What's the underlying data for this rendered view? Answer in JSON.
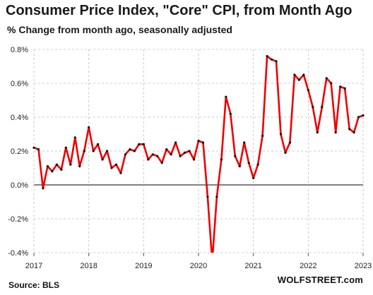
{
  "title": "Consumer Price Index, \"Core\" CPI, from Month Ago",
  "subtitle": "% Change from month ago, seasonally adjusted",
  "source": "Source: BLS",
  "watermark": "WOLFSTREET.com",
  "colors": {
    "line": "#ee0000",
    "marker": "#111111",
    "grid": "#bdbdbd",
    "zero_line": "#000000"
  },
  "chart_data": {
    "type": "line",
    "title": "Consumer Price Index, \"Core\" CPI, from Month Ago",
    "subtitle": "% Change from month ago, seasonally adjusted",
    "xlabel": "",
    "ylabel": "",
    "ylim": [
      -0.4,
      0.8
    ],
    "xlim": [
      "2017-01",
      "2023-01"
    ],
    "grid": true,
    "y_ticks": [
      "0.8%",
      "0.6%",
      "0.4%",
      "0.2%",
      "0.0%",
      "-0.2%",
      "-0.4%"
    ],
    "y_tick_values": [
      0.8,
      0.6,
      0.4,
      0.2,
      0.0,
      -0.2,
      -0.4
    ],
    "x_ticks": [
      "2017",
      "2018",
      "2019",
      "2020",
      "2021",
      "2022",
      "2023"
    ],
    "series": [
      {
        "x": [
          "2017-01",
          "2017-02",
          "2017-03",
          "2017-04",
          "2017-05",
          "2017-06",
          "2017-07",
          "2017-08",
          "2017-09",
          "2017-10",
          "2017-11",
          "2017-12",
          "2018-01",
          "2018-02",
          "2018-03",
          "2018-04",
          "2018-05",
          "2018-06",
          "2018-07",
          "2018-08",
          "2018-09",
          "2018-10",
          "2018-11",
          "2018-12",
          "2019-01",
          "2019-02",
          "2019-03",
          "2019-04",
          "2019-05",
          "2019-06",
          "2019-07",
          "2019-08",
          "2019-09",
          "2019-10",
          "2019-11",
          "2019-12",
          "2020-01",
          "2020-02",
          "2020-03",
          "2020-04",
          "2020-05",
          "2020-06",
          "2020-07",
          "2020-08",
          "2020-09",
          "2020-10",
          "2020-11",
          "2020-12",
          "2021-01",
          "2021-02",
          "2021-03",
          "2021-04",
          "2021-05",
          "2021-06",
          "2021-07",
          "2021-08",
          "2021-09",
          "2021-10",
          "2021-11",
          "2021-12",
          "2022-01",
          "2022-02",
          "2022-03",
          "2022-04",
          "2022-05",
          "2022-06",
          "2022-07",
          "2022-08",
          "2022-09",
          "2022-10",
          "2022-11",
          "2022-12"
        ],
        "values": [
          0.22,
          0.21,
          -0.02,
          0.11,
          0.08,
          0.12,
          0.09,
          0.22,
          0.12,
          0.28,
          0.11,
          0.2,
          0.34,
          0.2,
          0.24,
          0.15,
          0.2,
          0.1,
          0.12,
          0.07,
          0.18,
          0.21,
          0.2,
          0.24,
          0.24,
          0.15,
          0.18,
          0.17,
          0.13,
          0.21,
          0.18,
          0.25,
          0.17,
          0.19,
          0.2,
          0.15,
          0.26,
          0.25,
          -0.07,
          -0.45,
          -0.07,
          0.15,
          0.52,
          0.42,
          0.17,
          0.11,
          0.25,
          0.13,
          0.04,
          0.12,
          0.29,
          0.76,
          0.74,
          0.73,
          0.3,
          0.19,
          0.25,
          0.65,
          0.62,
          0.65,
          0.56,
          0.46,
          0.31,
          0.46,
          0.63,
          0.6,
          0.31,
          0.58,
          0.57,
          0.33,
          0.31,
          0.4
        ]
      }
    ],
    "final_value": 0.41
  }
}
